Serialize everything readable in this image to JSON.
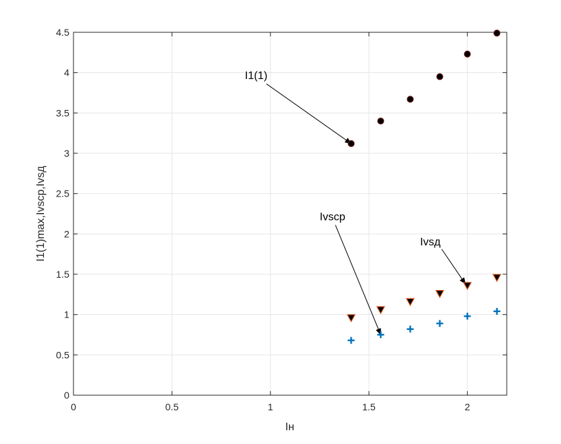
{
  "chart_data": {
    "type": "scatter",
    "xlabel": "Iн",
    "ylabel": "I1(1)max,Ivscp,Ivsд",
    "xlim": [
      0,
      2.2
    ],
    "ylim": [
      0,
      4.5
    ],
    "grid": true,
    "x_ticks": [
      0,
      0.5,
      1,
      1.5,
      2
    ],
    "x_tick_labels": [
      "0",
      "0.5",
      "1",
      "1.5",
      "2"
    ],
    "y_ticks": [
      0,
      0.5,
      1,
      1.5,
      2,
      2.5,
      3,
      3.5,
      4,
      4.5
    ],
    "y_tick_labels": [
      "0",
      "0.5",
      "1",
      "1.5",
      "2",
      "2.5",
      "3",
      "3.5",
      "4",
      "4.5"
    ],
    "series": [
      {
        "marker": "circle",
        "color": "#000000",
        "edge_color": "#7a1a1a",
        "x": [
          1.41,
          1.56,
          1.71,
          1.86,
          2.0,
          2.15
        ],
        "y": [
          3.12,
          3.4,
          3.67,
          3.95,
          4.23,
          4.49
        ]
      },
      {
        "marker": "triangle-down",
        "color": "#000000",
        "edge_color": "#d95319",
        "x": [
          1.41,
          1.56,
          1.71,
          1.86,
          2.0,
          2.15
        ],
        "y": [
          0.96,
          1.06,
          1.16,
          1.26,
          1.36,
          1.46
        ]
      },
      {
        "marker": "plus",
        "color": "#0072bd",
        "x": [
          1.41,
          1.56,
          1.71,
          1.86,
          2.0,
          2.15
        ],
        "y": [
          0.68,
          0.75,
          0.82,
          0.89,
          0.98,
          1.04
        ]
      }
    ],
    "annotations": [
      {
        "text": "I1(1)",
        "text_x": 0.87,
        "text_y": 3.92,
        "tail_x": 0.98,
        "tail_y": 3.86,
        "head_x": 1.41,
        "head_y": 3.12
      },
      {
        "text": "Ivscp",
        "text_x": 1.25,
        "text_y": 2.17,
        "tail_x": 1.33,
        "tail_y": 2.11,
        "head_x": 1.56,
        "head_y": 0.75
      },
      {
        "text": "Ivsд",
        "text_x": 1.76,
        "text_y": 1.86,
        "tail_x": 1.87,
        "tail_y": 1.81,
        "head_x": 1.99,
        "head_y": 1.38
      }
    ]
  }
}
